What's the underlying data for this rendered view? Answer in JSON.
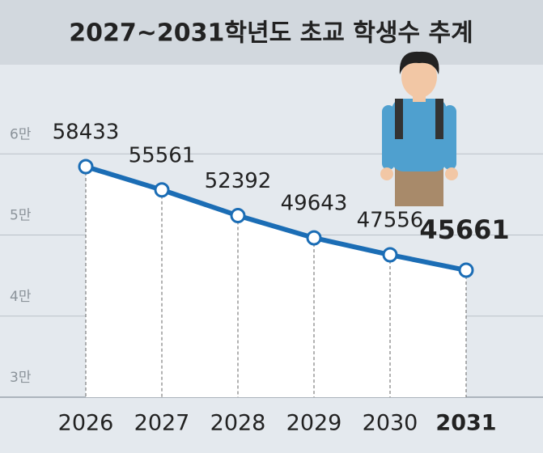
{
  "chart_data": {
    "type": "line",
    "title": "2027~2031학년도 초교 학생수 추계",
    "categories": [
      "2026",
      "2027",
      "2028",
      "2029",
      "2030",
      "2031"
    ],
    "series": [
      {
        "color": "#1b6db5",
        "values": [
          58433,
          55561,
          52392,
          49643,
          47556,
          45661
        ]
      }
    ],
    "ylim": [
      30000,
      71000
    ],
    "yticks": [
      {
        "value": 30000,
        "label": "3만"
      },
      {
        "value": 40000,
        "label": "4만"
      },
      {
        "value": 50000,
        "label": "5만"
      },
      {
        "value": 60000,
        "label": "6만"
      }
    ],
    "grid": true
  }
}
